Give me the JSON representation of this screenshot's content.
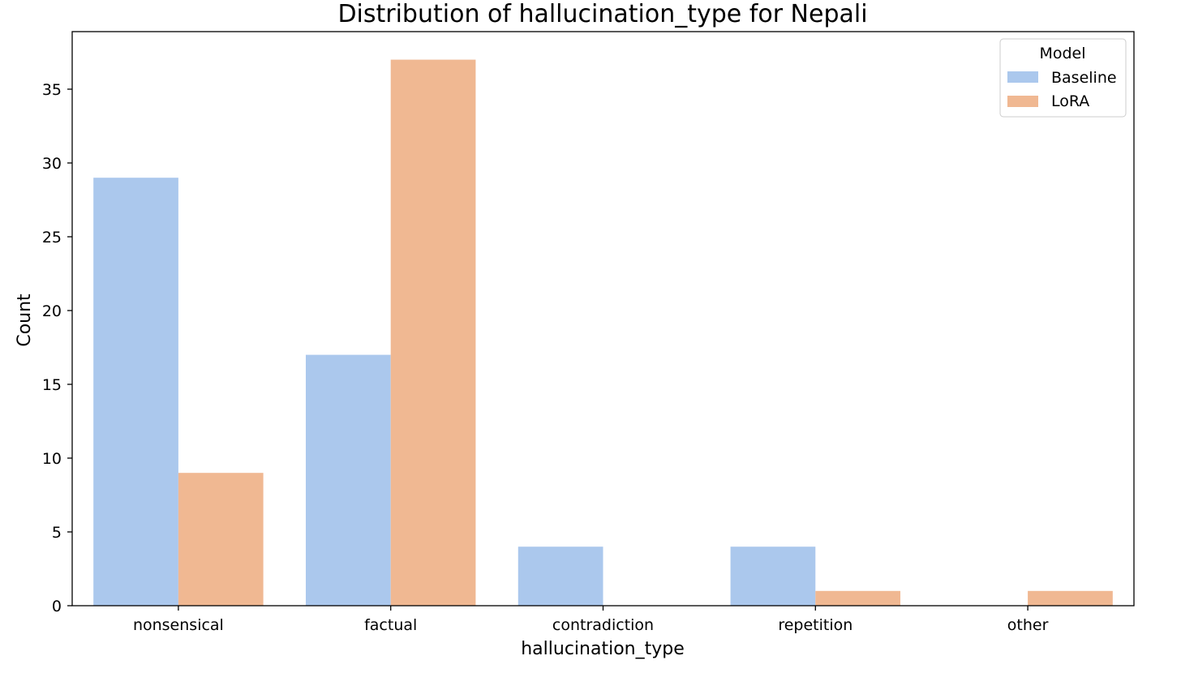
{
  "chart_data": {
    "type": "bar",
    "title": "Distribution of hallucination_type for Nepali",
    "xlabel": "hallucination_type",
    "ylabel": "Count",
    "categories": [
      "nonsensical",
      "factual",
      "contradiction",
      "repetition",
      "other"
    ],
    "series": [
      {
        "name": "Baseline",
        "values": [
          29,
          17,
          4,
          4,
          0
        ],
        "color": "#abc8ed"
      },
      {
        "name": "LoRA",
        "values": [
          9,
          37,
          0,
          1,
          1
        ],
        "color": "#f0b892"
      }
    ],
    "ylim": [
      0,
      38.9
    ],
    "yticks": [
      0,
      5,
      10,
      15,
      20,
      25,
      30,
      35
    ],
    "grid": false,
    "legend": {
      "title": "Model",
      "position": "top-right",
      "entries": [
        "Baseline",
        "LoRA"
      ]
    }
  }
}
